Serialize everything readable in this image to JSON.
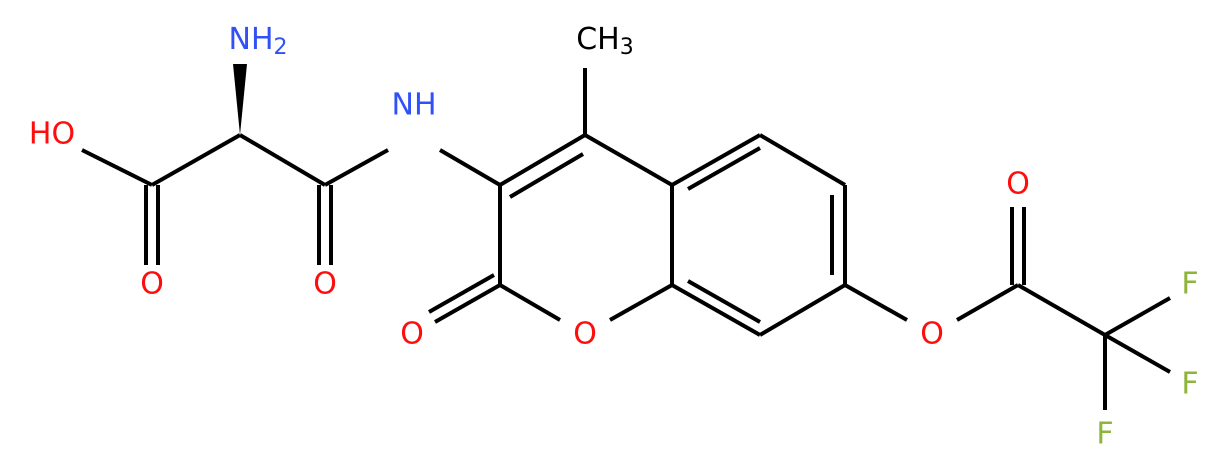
{
  "atoms": [
    {
      "label": "NH",
      "sub": "2"
    },
    {
      "label": "HO"
    },
    {
      "label": "O"
    },
    {
      "label": "O"
    },
    {
      "label": "NH"
    },
    {
      "label": "CH",
      "sub": "3"
    },
    {
      "label": "O"
    },
    {
      "label": "O"
    },
    {
      "label": "O"
    },
    {
      "label": "O"
    },
    {
      "label": "F"
    },
    {
      "label": "F"
    },
    {
      "label": "F"
    }
  ]
}
